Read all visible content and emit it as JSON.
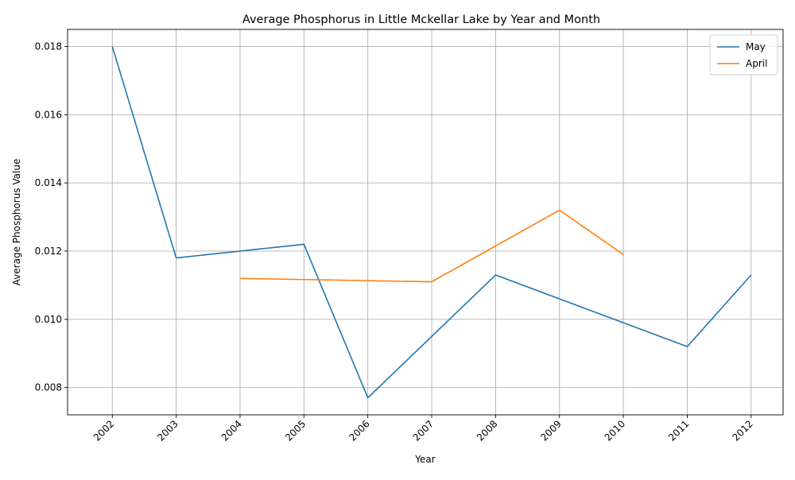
{
  "chart_data": {
    "type": "line",
    "title": "Average Phosphorus in Little Mckellar Lake by Year and Month",
    "xlabel": "Year",
    "ylabel": "Average Phosphorus Value",
    "x_ticks": [
      "2002",
      "2003",
      "2004",
      "2005",
      "2006",
      "2007",
      "2008",
      "2009",
      "2010",
      "2011",
      "2012"
    ],
    "y_ticks": [
      "0.008",
      "0.010",
      "0.012",
      "0.014",
      "0.016",
      "0.018"
    ],
    "xlim": [
      2001.3,
      2012.5
    ],
    "ylim": [
      0.0072,
      0.0185
    ],
    "grid": true,
    "legend_position": "top-right",
    "series": [
      {
        "name": "May",
        "color": "#1f77b4",
        "x": [
          2002,
          2003,
          2005,
          2006,
          2008,
          2011,
          2012
        ],
        "y": [
          0.018,
          0.0118,
          0.0122,
          0.0077,
          0.0113,
          0.0092,
          0.0113
        ]
      },
      {
        "name": "April",
        "color": "#ff7f0e",
        "x": [
          2004,
          2007,
          2009,
          2010
        ],
        "y": [
          0.0112,
          0.0111,
          0.0132,
          0.0119
        ]
      }
    ]
  }
}
